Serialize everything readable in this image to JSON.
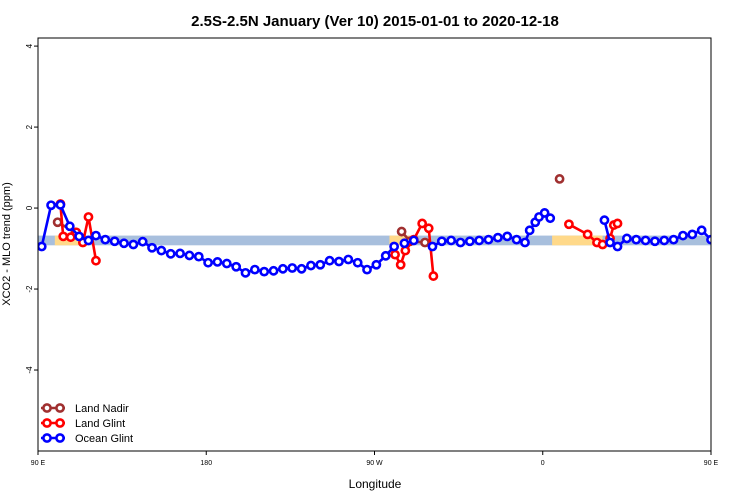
{
  "chart_data": {
    "type": "line",
    "title": "2.5S-2.5N January (Ver 10)   2015-01-01 to 2020-12-18",
    "xlabel": "Longitude",
    "ylabel": "XCO2 - MLO trend (ppm)",
    "xlim": [
      90,
      450
    ],
    "ylim": [
      -6,
      4.2
    ],
    "xticks": [
      {
        "value": 90,
        "label": "90 E"
      },
      {
        "value": 180,
        "label": "180"
      },
      {
        "value": 270,
        "label": "90 W"
      },
      {
        "value": 360,
        "label": "0"
      },
      {
        "value": 450,
        "label": "90 E"
      },
      {
        "value": 540,
        "label": "180"
      }
    ],
    "yticks": [
      -4,
      -2,
      0,
      2,
      4
    ],
    "band": {
      "y_min": -0.92,
      "y_max": -0.68,
      "color": "#a8bfdd"
    },
    "land_spans": [
      {
        "x0": 99,
        "x1": 115
      },
      {
        "x0": 278,
        "x1": 292
      },
      {
        "x0": 365,
        "x1": 392
      },
      {
        "x0": 492,
        "x1": 511
      }
    ],
    "land_color": "#ffd98a",
    "legend_position": "bottom-left",
    "series": [
      {
        "name": "Land Nadir",
        "color": "#a03030",
        "segments": [
          {
            "x": [
              100.5,
              110
            ],
            "y": [
              -0.35,
              -0.6
            ]
          },
          {
            "x": [
              284.5,
              289,
              297
            ],
            "y": [
              -0.58,
              -0.82,
              -0.85
            ]
          },
          {
            "x": [
              369
            ],
            "y": [
              0.72
            ]
          },
          {
            "x": [
              489.5,
              498
            ],
            "y": [
              -0.55,
              -0.85
            ]
          }
        ]
      },
      {
        "name": "Land Glint",
        "color": "#ff0000",
        "segments": [
          {
            "x": [
              102,
              103.5,
              107.5,
              110.5,
              114,
              117,
              121
            ],
            "y": [
              0.1,
              -0.7,
              -0.72,
              -0.6,
              -0.85,
              -0.22,
              -1.3
            ]
          },
          {
            "x": [
              281,
              284,
              286.5,
              291,
              295.5,
              299,
              301.5
            ],
            "y": [
              -1.15,
              -1.4,
              -1.05,
              -0.78,
              -0.38,
              -0.5,
              -1.68
            ]
          },
          {
            "x": [
              374,
              384,
              389,
              392,
              396,
              398,
              400
            ],
            "y": [
              -0.4,
              -0.65,
              -0.85,
              -0.9,
              -0.75,
              -0.42,
              -0.38
            ]
          },
          {
            "x": [
              462,
              464.5,
              466
            ],
            "y": [
              0.05,
              -0.7,
              -0.25
            ]
          },
          {
            "x": [
              470.5,
              475.5,
              478.5,
              484.5,
              488,
              491
            ],
            "y": [
              -0.7,
              -0.55,
              -0.72,
              -0.25,
              -0.82,
              -1.3
            ]
          }
        ]
      },
      {
        "name": "Ocean Glint",
        "color": "#0000ff",
        "segments": [
          {
            "x": [
              92,
              97,
              102,
              107,
              112,
              117,
              121,
              126,
              131,
              136,
              141,
              146,
              151,
              156,
              161,
              166,
              171,
              176,
              181,
              186,
              191,
              196,
              201,
              206,
              211,
              216,
              221,
              226,
              231,
              236,
              241,
              246,
              251,
              256,
              261,
              266,
              271,
              276,
              280.5
            ],
            "y": [
              -0.95,
              0.07,
              0.08,
              -0.45,
              -0.7,
              -0.8,
              -0.68,
              -0.78,
              -0.82,
              -0.87,
              -0.9,
              -0.83,
              -0.98,
              -1.05,
              -1.13,
              -1.12,
              -1.17,
              -1.2,
              -1.35,
              -1.33,
              -1.37,
              -1.45,
              -1.6,
              -1.52,
              -1.57,
              -1.55,
              -1.5,
              -1.48,
              -1.5,
              -1.42,
              -1.4,
              -1.3,
              -1.32,
              -1.27,
              -1.35,
              -1.52,
              -1.4,
              -1.18,
              -0.95
            ]
          },
          {
            "x": [
              286,
              291
            ],
            "y": [
              -0.87,
              -0.8
            ]
          },
          {
            "x": [
              301,
              306,
              311,
              316,
              321,
              326,
              331,
              336,
              341,
              346,
              350.5,
              353,
              356,
              358
            ],
            "y": [
              -0.95,
              -0.82,
              -0.8,
              -0.85,
              -0.82,
              -0.8,
              -0.78,
              -0.73,
              -0.7,
              -0.78,
              -0.85,
              -0.55,
              -0.35,
              -0.22
            ]
          },
          {
            "x": [
              361,
              364
            ],
            "y": [
              -0.12,
              -0.25
            ]
          },
          {
            "x": [
              393,
              396,
              400,
              405,
              410,
              415,
              420,
              425,
              430,
              435,
              440,
              445,
              450,
              455,
              460,
              465,
              469
            ],
            "y": [
              -0.3,
              -0.85,
              -0.95,
              -0.75,
              -0.78,
              -0.8,
              -0.82,
              -0.8,
              -0.78,
              -0.68,
              -0.65,
              -0.55,
              -0.78,
              -0.9,
              0.07,
              0.08,
              -0.45
            ]
          },
          {
            "x": [
              474,
              479,
              484,
              489,
              494,
              499,
              504,
              509,
              514,
              519,
              524,
              529,
              534,
              539
            ],
            "y": [
              -0.7,
              -0.75,
              -0.68,
              -0.82,
              -0.78,
              -0.87,
              -0.9,
              -0.83,
              -0.98,
              -1.05,
              -1.13,
              -1.12,
              -1.17,
              -1.2
            ]
          }
        ]
      }
    ]
  }
}
